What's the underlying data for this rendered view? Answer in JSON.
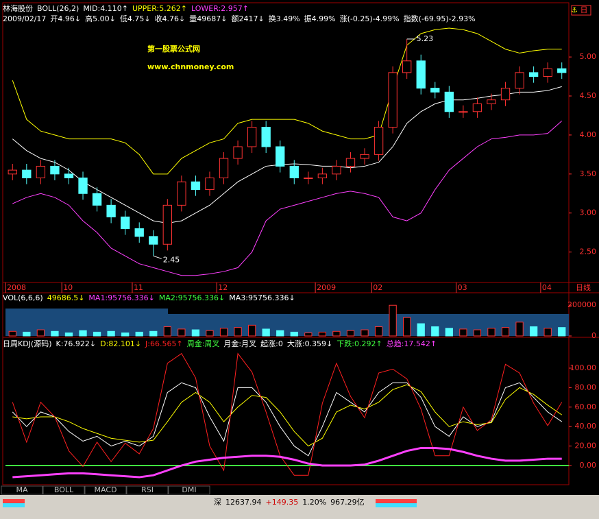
{
  "chart_data": [
    {
      "type": "candlestick",
      "title": "林海股份",
      "subtitle": "BOLL(26,2)",
      "info": [
        "2009/02/17",
        "开4.96↓",
        "高5.00↓",
        "低4.75↓",
        "收4.76↓",
        "量49687↓",
        "额2417↓",
        "换3.49%",
        "振4.99%",
        "涨(-0.25)-4.99%",
        "指数(-69.95)-2.93%"
      ],
      "watermark": [
        "第一股票公式网",
        "www.chnmoney.com"
      ],
      "period_label": "日线",
      "high_label": "5.23",
      "low_label": "2.45",
      "up_color": "#ff3232",
      "down_color": "#54ffff",
      "categories": [
        "2008",
        null,
        null,
        null,
        "10",
        null,
        null,
        null,
        null,
        "11",
        null,
        null,
        null,
        null,
        null,
        "12",
        null,
        null,
        null,
        null,
        null,
        null,
        "2009",
        null,
        null,
        null,
        "02",
        null,
        null,
        null,
        null,
        null,
        "03",
        null,
        null,
        null,
        null,
        null,
        "04",
        null
      ],
      "open": [
        3.5,
        3.55,
        3.45,
        3.6,
        3.5,
        3.45,
        3.25,
        3.1,
        2.95,
        2.8,
        2.7,
        2.6,
        3.1,
        3.4,
        3.3,
        3.45,
        3.7,
        3.85,
        4.1,
        3.85,
        3.6,
        3.45,
        3.45,
        3.5,
        3.6,
        3.7,
        3.75,
        4.1,
        4.8,
        4.95,
        4.6,
        4.55,
        4.3,
        4.3,
        4.4,
        4.45,
        4.6,
        4.8,
        4.75,
        4.85
      ],
      "high": [
        3.63,
        3.63,
        3.68,
        3.68,
        3.58,
        3.53,
        3.33,
        3.18,
        3.03,
        2.88,
        2.78,
        3.18,
        3.48,
        3.48,
        3.53,
        3.78,
        3.93,
        4.18,
        4.18,
        3.93,
        3.68,
        3.53,
        3.58,
        3.68,
        3.78,
        3.83,
        4.18,
        4.88,
        5.23,
        5.03,
        4.68,
        4.63,
        4.38,
        4.48,
        4.53,
        4.68,
        4.88,
        4.88,
        4.93,
        4.93
      ],
      "low": [
        3.42,
        3.37,
        3.37,
        3.42,
        3.37,
        3.17,
        3.02,
        2.87,
        2.72,
        2.62,
        2.45,
        2.52,
        3.02,
        3.22,
        3.22,
        3.37,
        3.62,
        3.77,
        3.77,
        3.52,
        3.37,
        3.37,
        3.37,
        3.42,
        3.52,
        3.62,
        3.67,
        4.02,
        4.72,
        4.52,
        4.47,
        4.22,
        4.22,
        4.22,
        4.32,
        4.37,
        4.52,
        4.67,
        4.67,
        4.72
      ],
      "close": [
        3.55,
        3.45,
        3.6,
        3.5,
        3.45,
        3.25,
        3.1,
        2.95,
        2.8,
        2.7,
        2.6,
        3.1,
        3.4,
        3.3,
        3.45,
        3.7,
        3.85,
        4.1,
        3.85,
        3.6,
        3.45,
        3.45,
        3.5,
        3.6,
        3.7,
        3.75,
        4.1,
        4.8,
        4.95,
        4.6,
        4.55,
        4.3,
        4.3,
        4.4,
        4.45,
        4.6,
        4.8,
        4.75,
        4.85,
        4.8
      ],
      "series": [
        {
          "name": "MID:4.110↑",
          "color": "#ffffff",
          "values": [
            3.95,
            3.8,
            3.7,
            3.65,
            3.55,
            3.4,
            3.3,
            3.2,
            3.1,
            3.0,
            2.9,
            2.87,
            2.9,
            3.0,
            3.1,
            3.25,
            3.4,
            3.5,
            3.6,
            3.62,
            3.63,
            3.62,
            3.6,
            3.6,
            3.58,
            3.6,
            3.65,
            3.85,
            4.15,
            4.3,
            4.4,
            4.45,
            4.45,
            4.47,
            4.5,
            4.52,
            4.55,
            4.55,
            4.57,
            4.62
          ]
        },
        {
          "name": "UPPER:5.262↑",
          "color": "#ffff00",
          "values": [
            4.7,
            4.2,
            4.05,
            4.0,
            3.95,
            3.95,
            3.95,
            3.95,
            3.9,
            3.75,
            3.5,
            3.5,
            3.7,
            3.8,
            3.9,
            3.95,
            4.15,
            4.2,
            4.2,
            4.2,
            4.2,
            4.15,
            4.05,
            4.0,
            3.95,
            3.95,
            4.0,
            4.6,
            5.15,
            5.3,
            5.35,
            5.37,
            5.35,
            5.3,
            5.2,
            5.1,
            5.05,
            5.08,
            5.1,
            5.1
          ]
        },
        {
          "name": "LOWER:2.957↑",
          "color": "#ff40ff",
          "values": [
            3.12,
            3.2,
            3.25,
            3.2,
            3.1,
            2.9,
            2.75,
            2.55,
            2.45,
            2.35,
            2.3,
            2.25,
            2.2,
            2.2,
            2.22,
            2.25,
            2.3,
            2.5,
            2.9,
            3.05,
            3.1,
            3.15,
            3.2,
            3.25,
            3.28,
            3.25,
            3.2,
            2.95,
            2.9,
            3.0,
            3.3,
            3.55,
            3.7,
            3.85,
            3.95,
            3.97,
            4.0,
            4.0,
            4.02,
            4.18
          ]
        }
      ],
      "ylim": [
        2.11,
        5.66
      ],
      "yticks": [
        {
          "value": 2.5,
          "label": "2.50"
        },
        {
          "value": 3,
          "label": "3.00"
        },
        {
          "value": 3.5,
          "label": "3.50"
        },
        {
          "value": 4,
          "label": "4.00"
        },
        {
          "value": 4.5,
          "label": "4.50"
        },
        {
          "value": 5,
          "label": "5.00"
        }
      ]
    },
    {
      "type": "bar",
      "title": "VOL(6,6,6)",
      "header_items": [
        {
          "text": "49686.5↓",
          "color": "#ffff00"
        },
        {
          "text": "MA1:95756.336↓",
          "color": "#ff40ff"
        },
        {
          "text": "MA2:95756.336↓",
          "color": "#40ff40"
        },
        {
          "text": "MA3:95756.336↓",
          "color": "#ffffff"
        }
      ],
      "values": [
        30000,
        25000,
        40000,
        30000,
        20000,
        35000,
        25000,
        30000,
        20000,
        25000,
        30000,
        60000,
        45000,
        40000,
        35000,
        50000,
        55000,
        70000,
        45000,
        35000,
        25000,
        20000,
        25000,
        30000,
        35000,
        40000,
        60000,
        200000,
        120000,
        80000,
        60000,
        50000,
        45000,
        40000,
        50000,
        55000,
        90000,
        60000,
        50000,
        55000
      ],
      "ylim": [
        0,
        210000
      ],
      "yticks": [
        0,
        200000
      ]
    },
    {
      "type": "line",
      "title": "日周KDJ(源码)",
      "notes": [
        {
          "text": "周金:周叉",
          "color": "#40ff40"
        },
        {
          "text": "月金:月叉",
          "color": "#ffffff"
        },
        {
          "text": "起涨:0",
          "color": "#ffffff"
        },
        {
          "text": "大涨:0.359↓",
          "color": "#ffffff"
        },
        {
          "text": "下跌:0.292↑",
          "color": "#40ff40"
        }
      ],
      "series": [
        {
          "name": "K:76.922↓",
          "color": "#ffffff",
          "values": [
            55,
            40,
            55,
            50,
            35,
            25,
            30,
            20,
            25,
            20,
            30,
            75,
            85,
            80,
            50,
            25,
            80,
            80,
            65,
            40,
            20,
            10,
            40,
            75,
            65,
            55,
            75,
            85,
            85,
            70,
            40,
            30,
            50,
            40,
            45,
            80,
            85,
            70,
            55,
            45
          ]
        },
        {
          "name": "D:82.101↓",
          "color": "#ffff00",
          "values": [
            50,
            48,
            50,
            50,
            45,
            38,
            33,
            28,
            26,
            24,
            26,
            45,
            65,
            75,
            65,
            45,
            60,
            72,
            70,
            55,
            35,
            20,
            28,
            55,
            62,
            58,
            65,
            78,
            83,
            76,
            55,
            40,
            45,
            42,
            44,
            68,
            80,
            73,
            62,
            52
          ]
        },
        {
          "name": "J:66.565↑",
          "color": "#ff2020",
          "values": [
            65,
            24,
            65,
            50,
            15,
            -1,
            24,
            4,
            23,
            12,
            38,
            105,
            115,
            90,
            20,
            -5,
            115,
            96,
            55,
            10,
            -10,
            -10,
            64,
            105,
            71,
            49,
            95,
            99,
            89,
            58,
            10,
            10,
            60,
            36,
            47,
            104,
            95,
            64,
            41,
            65
          ]
        },
        {
          "name": "总趋:17.542↑",
          "color": "#ff40ff",
          "values": [
            -12,
            -11,
            -10,
            -9,
            -8,
            -8,
            -9,
            -10,
            -11,
            -12,
            -10,
            -5,
            0,
            4,
            6,
            8,
            9,
            10,
            10,
            9,
            6,
            2,
            0,
            0,
            0,
            1,
            5,
            10,
            15,
            18,
            18,
            17,
            14,
            10,
            7,
            5,
            5,
            6,
            7,
            7
          ]
        }
      ],
      "ylim": [
        -18.3,
        122.5
      ],
      "yticks": [
        {
          "value": 0,
          "label": "0.00"
        },
        {
          "value": 20,
          "label": "20.00"
        },
        {
          "value": 40,
          "label": "40.00"
        },
        {
          "value": 60,
          "label": "60.00"
        },
        {
          "value": 80,
          "label": "80.00"
        },
        {
          "value": 100,
          "label": "100.00"
        }
      ]
    }
  ],
  "ui": {
    "corner": "日",
    "tabs": [
      "MA",
      "BOLL",
      "MACD",
      "RSI",
      "DMI"
    ],
    "status": {
      "market": "深",
      "index": "12637.94",
      "change": "+149.35",
      "percent": "1.20%",
      "amount": "967.29亿"
    }
  }
}
